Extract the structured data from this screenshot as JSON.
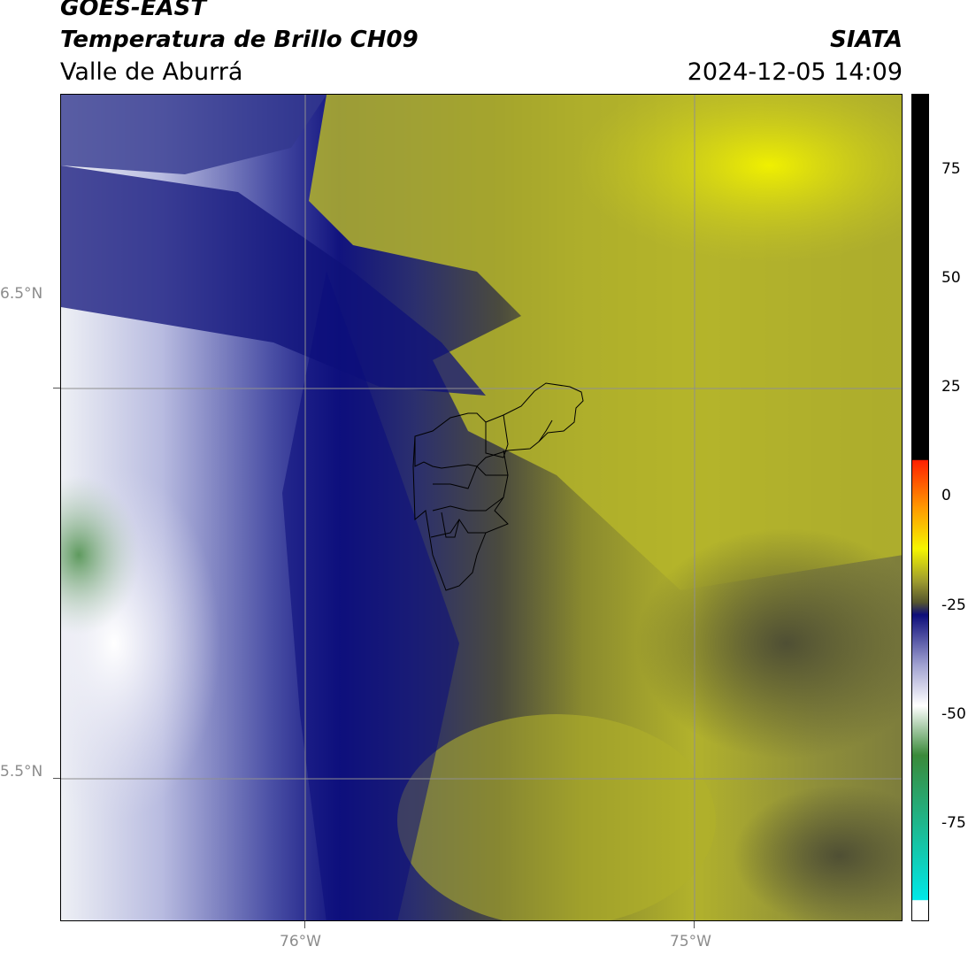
{
  "header": {
    "satellite": "GOES-EAST",
    "product": "Temperatura de Brillo CH09",
    "organization": "SIATA",
    "region": "Valle de Aburrá",
    "datetime": "2024-12-05 14:09"
  },
  "map": {
    "lat_labels": [
      "6.5°N",
      "5.5°N"
    ],
    "lon_labels": [
      "76°W",
      "75°W"
    ],
    "gridlines": true
  },
  "colorbar": {
    "tick_labels": [
      "75",
      "50",
      "25",
      "0",
      "-25",
      "-50",
      "-75"
    ],
    "colors": {
      "black": "#000000",
      "red": "#ff2000",
      "orange": "#ff9900",
      "yellow": "#f5f500",
      "olive": "#9c9a2e",
      "dark_olive": "#55552e",
      "navy": "#0d0d7a",
      "lavender": "#9fa0d0",
      "white": "#ffffff",
      "green": "#3a8a3a",
      "cyan": "#00e8e8"
    }
  }
}
